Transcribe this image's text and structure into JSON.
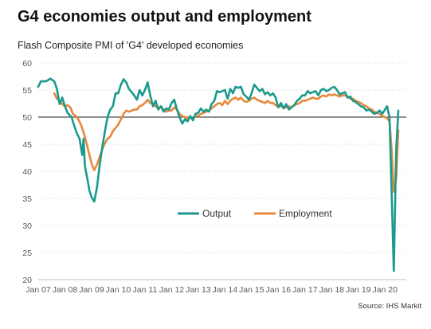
{
  "chart_data": {
    "type": "line",
    "title": "G4 economies output and employment",
    "subtitle": "Flash Composite PMI of 'G4' developed economies",
    "source": "Source: IHS Markit",
    "ylim": [
      20,
      60
    ],
    "y_ticks": [
      "20",
      "25",
      "30",
      "35",
      "40",
      "45",
      "50",
      "55",
      "60"
    ],
    "x_range": [
      2007.0,
      2020.5
    ],
    "x_ticks": [
      "Jan 07",
      "Jan 08",
      "Jan 09",
      "Jan 10",
      "Jan 11",
      "Jan 12",
      "Jan 13",
      "Jan 14",
      "Jan 15",
      "Jan 16",
      "Jan 17",
      "Jan 18",
      "Jan 19",
      "Jan 20"
    ],
    "reference_line": 50,
    "grid": "horizontal",
    "legend_position": "center-right",
    "series": [
      {
        "name": "Output",
        "color": "#1a9a8c",
        "points": [
          [
            2007.0,
            55.6
          ],
          [
            2007.1,
            56.6
          ],
          [
            2007.3,
            56.6
          ],
          [
            2007.45,
            57.1
          ],
          [
            2007.6,
            56.6
          ],
          [
            2007.7,
            55.2
          ],
          [
            2007.8,
            52.4
          ],
          [
            2007.9,
            53.6
          ],
          [
            2008.0,
            52.0
          ],
          [
            2008.1,
            50.8
          ],
          [
            2008.25,
            50.0
          ],
          [
            2008.35,
            48.4
          ],
          [
            2008.45,
            47.0
          ],
          [
            2008.55,
            46.0
          ],
          [
            2008.65,
            43.0
          ],
          [
            2008.7,
            46.0
          ],
          [
            2008.75,
            41.0
          ],
          [
            2008.85,
            38.4
          ],
          [
            2008.92,
            36.4
          ],
          [
            2009.0,
            35.2
          ],
          [
            2009.1,
            34.4
          ],
          [
            2009.2,
            37.0
          ],
          [
            2009.3,
            41.0
          ],
          [
            2009.4,
            44.4
          ],
          [
            2009.5,
            47.4
          ],
          [
            2009.6,
            50.0
          ],
          [
            2009.7,
            51.4
          ],
          [
            2009.8,
            52.0
          ],
          [
            2009.9,
            54.4
          ],
          [
            2010.0,
            54.4
          ],
          [
            2010.1,
            56.0
          ],
          [
            2010.2,
            57.0
          ],
          [
            2010.3,
            56.4
          ],
          [
            2010.4,
            55.2
          ],
          [
            2010.5,
            54.6
          ],
          [
            2010.6,
            54.0
          ],
          [
            2010.7,
            53.2
          ],
          [
            2010.8,
            55.0
          ],
          [
            2010.9,
            54.0
          ],
          [
            2011.0,
            55.0
          ],
          [
            2011.1,
            56.4
          ],
          [
            2011.2,
            54.0
          ],
          [
            2011.3,
            52.0
          ],
          [
            2011.4,
            53.0
          ],
          [
            2011.5,
            51.4
          ],
          [
            2011.6,
            52.0
          ],
          [
            2011.7,
            51.0
          ],
          [
            2011.8,
            51.6
          ],
          [
            2011.9,
            51.4
          ],
          [
            2012.0,
            52.6
          ],
          [
            2012.1,
            53.2
          ],
          [
            2012.2,
            51.4
          ],
          [
            2012.3,
            50.0
          ],
          [
            2012.4,
            48.8
          ],
          [
            2012.5,
            49.6
          ],
          [
            2012.6,
            49.2
          ],
          [
            2012.7,
            50.2
          ],
          [
            2012.8,
            49.4
          ],
          [
            2012.9,
            50.6
          ],
          [
            2013.0,
            50.8
          ],
          [
            2013.1,
            51.6
          ],
          [
            2013.2,
            51.0
          ],
          [
            2013.3,
            51.4
          ],
          [
            2013.4,
            51.0
          ],
          [
            2013.5,
            52.4
          ],
          [
            2013.6,
            53.0
          ],
          [
            2013.7,
            54.8
          ],
          [
            2013.8,
            54.6
          ],
          [
            2013.9,
            54.8
          ],
          [
            2014.0,
            55.0
          ],
          [
            2014.1,
            53.4
          ],
          [
            2014.2,
            55.2
          ],
          [
            2014.3,
            54.4
          ],
          [
            2014.4,
            55.6
          ],
          [
            2014.5,
            55.4
          ],
          [
            2014.6,
            55.6
          ],
          [
            2014.7,
            54.2
          ],
          [
            2014.8,
            53.8
          ],
          [
            2014.9,
            53.2
          ],
          [
            2015.0,
            54.4
          ],
          [
            2015.1,
            56.0
          ],
          [
            2015.2,
            55.4
          ],
          [
            2015.3,
            54.8
          ],
          [
            2015.4,
            55.2
          ],
          [
            2015.5,
            54.2
          ],
          [
            2015.6,
            54.6
          ],
          [
            2015.7,
            54.0
          ],
          [
            2015.8,
            54.4
          ],
          [
            2015.9,
            53.6
          ],
          [
            2016.0,
            51.8
          ],
          [
            2016.1,
            52.6
          ],
          [
            2016.2,
            51.6
          ],
          [
            2016.3,
            52.4
          ],
          [
            2016.4,
            51.4
          ],
          [
            2016.5,
            51.8
          ],
          [
            2016.6,
            52.2
          ],
          [
            2016.7,
            53.0
          ],
          [
            2016.8,
            53.4
          ],
          [
            2016.9,
            54.0
          ],
          [
            2017.0,
            54.0
          ],
          [
            2017.1,
            54.8
          ],
          [
            2017.2,
            54.4
          ],
          [
            2017.3,
            54.6
          ],
          [
            2017.4,
            54.8
          ],
          [
            2017.5,
            54.0
          ],
          [
            2017.6,
            55.0
          ],
          [
            2017.7,
            55.2
          ],
          [
            2017.8,
            54.8
          ],
          [
            2017.9,
            55.0
          ],
          [
            2018.0,
            55.4
          ],
          [
            2018.1,
            55.6
          ],
          [
            2018.2,
            55.0
          ],
          [
            2018.3,
            54.2
          ],
          [
            2018.4,
            54.4
          ],
          [
            2018.5,
            54.6
          ],
          [
            2018.6,
            53.6
          ],
          [
            2018.7,
            53.8
          ],
          [
            2018.8,
            53.0
          ],
          [
            2018.9,
            52.8
          ],
          [
            2019.0,
            52.4
          ],
          [
            2019.1,
            52.0
          ],
          [
            2019.2,
            51.8
          ],
          [
            2019.3,
            51.2
          ],
          [
            2019.4,
            51.4
          ],
          [
            2019.5,
            51.0
          ],
          [
            2019.6,
            50.6
          ],
          [
            2019.7,
            50.8
          ],
          [
            2019.8,
            51.2
          ],
          [
            2019.9,
            50.6
          ],
          [
            2020.0,
            51.4
          ],
          [
            2020.08,
            52.0
          ],
          [
            2020.17,
            50.0
          ],
          [
            2020.25,
            36.0
          ],
          [
            2020.33,
            21.6
          ],
          [
            2020.42,
            44.0
          ],
          [
            2020.5,
            51.2
          ]
        ]
      },
      {
        "name": "Employment",
        "color": "#e8883a",
        "points": [
          [
            2007.6,
            54.4
          ],
          [
            2007.7,
            53.4
          ],
          [
            2007.8,
            53.0
          ],
          [
            2007.9,
            52.4
          ],
          [
            2008.0,
            52.0
          ],
          [
            2008.1,
            52.2
          ],
          [
            2008.2,
            51.8
          ],
          [
            2008.3,
            50.6
          ],
          [
            2008.4,
            50.2
          ],
          [
            2008.5,
            49.6
          ],
          [
            2008.6,
            48.6
          ],
          [
            2008.7,
            47.2
          ],
          [
            2008.8,
            45.4
          ],
          [
            2008.9,
            43.4
          ],
          [
            2009.0,
            41.4
          ],
          [
            2009.1,
            40.2
          ],
          [
            2009.2,
            41.2
          ],
          [
            2009.3,
            42.6
          ],
          [
            2009.4,
            44.0
          ],
          [
            2009.5,
            45.2
          ],
          [
            2009.6,
            46.0
          ],
          [
            2009.7,
            46.4
          ],
          [
            2009.8,
            47.4
          ],
          [
            2009.9,
            48.0
          ],
          [
            2010.0,
            48.6
          ],
          [
            2010.1,
            49.6
          ],
          [
            2010.2,
            50.6
          ],
          [
            2010.3,
            51.2
          ],
          [
            2010.4,
            51.0
          ],
          [
            2010.5,
            51.2
          ],
          [
            2010.6,
            51.4
          ],
          [
            2010.7,
            51.4
          ],
          [
            2010.8,
            52.0
          ],
          [
            2010.9,
            52.2
          ],
          [
            2011.0,
            52.6
          ],
          [
            2011.1,
            53.2
          ],
          [
            2011.2,
            52.6
          ],
          [
            2011.3,
            52.4
          ],
          [
            2011.4,
            52.0
          ],
          [
            2011.5,
            51.6
          ],
          [
            2011.6,
            52.0
          ],
          [
            2011.7,
            51.4
          ],
          [
            2011.8,
            51.0
          ],
          [
            2011.9,
            51.2
          ],
          [
            2012.0,
            51.2
          ],
          [
            2012.1,
            51.8
          ],
          [
            2012.2,
            51.4
          ],
          [
            2012.3,
            50.6
          ],
          [
            2012.4,
            50.2
          ],
          [
            2012.5,
            50.0
          ],
          [
            2012.6,
            49.8
          ],
          [
            2012.7,
            50.0
          ],
          [
            2012.8,
            49.6
          ],
          [
            2012.9,
            50.2
          ],
          [
            2013.0,
            50.2
          ],
          [
            2013.1,
            50.6
          ],
          [
            2013.2,
            50.8
          ],
          [
            2013.3,
            51.0
          ],
          [
            2013.4,
            51.2
          ],
          [
            2013.5,
            51.6
          ],
          [
            2013.6,
            52.0
          ],
          [
            2013.7,
            52.4
          ],
          [
            2013.8,
            52.6
          ],
          [
            2013.9,
            52.2
          ],
          [
            2014.0,
            53.0
          ],
          [
            2014.1,
            52.4
          ],
          [
            2014.2,
            53.0
          ],
          [
            2014.3,
            53.4
          ],
          [
            2014.4,
            53.6
          ],
          [
            2014.5,
            53.2
          ],
          [
            2014.6,
            53.6
          ],
          [
            2014.7,
            53.0
          ],
          [
            2014.8,
            52.8
          ],
          [
            2014.9,
            53.0
          ],
          [
            2015.0,
            53.4
          ],
          [
            2015.1,
            53.6
          ],
          [
            2015.2,
            53.2
          ],
          [
            2015.3,
            53.0
          ],
          [
            2015.4,
            52.8
          ],
          [
            2015.5,
            52.6
          ],
          [
            2015.6,
            53.0
          ],
          [
            2015.7,
            52.6
          ],
          [
            2015.8,
            52.6
          ],
          [
            2015.9,
            52.2
          ],
          [
            2016.0,
            52.0
          ],
          [
            2016.1,
            52.0
          ],
          [
            2016.2,
            51.8
          ],
          [
            2016.3,
            51.8
          ],
          [
            2016.4,
            52.0
          ],
          [
            2016.5,
            51.8
          ],
          [
            2016.6,
            52.2
          ],
          [
            2016.7,
            52.4
          ],
          [
            2016.8,
            52.6
          ],
          [
            2016.9,
            53.0
          ],
          [
            2017.0,
            53.0
          ],
          [
            2017.1,
            53.2
          ],
          [
            2017.2,
            53.4
          ],
          [
            2017.3,
            53.6
          ],
          [
            2017.4,
            53.4
          ],
          [
            2017.5,
            53.4
          ],
          [
            2017.6,
            53.8
          ],
          [
            2017.7,
            54.0
          ],
          [
            2017.8,
            53.8
          ],
          [
            2017.9,
            54.2
          ],
          [
            2018.0,
            54.0
          ],
          [
            2018.1,
            54.2
          ],
          [
            2018.2,
            54.0
          ],
          [
            2018.3,
            53.8
          ],
          [
            2018.4,
            54.0
          ],
          [
            2018.5,
            54.0
          ],
          [
            2018.6,
            53.8
          ],
          [
            2018.7,
            53.4
          ],
          [
            2018.8,
            53.4
          ],
          [
            2018.9,
            53.0
          ],
          [
            2019.0,
            52.8
          ],
          [
            2019.1,
            52.6
          ],
          [
            2019.2,
            52.2
          ],
          [
            2019.3,
            52.0
          ],
          [
            2019.4,
            51.6
          ],
          [
            2019.5,
            51.4
          ],
          [
            2019.6,
            51.0
          ],
          [
            2019.7,
            50.8
          ],
          [
            2019.8,
            50.6
          ],
          [
            2019.9,
            50.2
          ],
          [
            2020.0,
            50.0
          ],
          [
            2020.08,
            49.8
          ],
          [
            2020.17,
            49.2
          ],
          [
            2020.25,
            44.0
          ],
          [
            2020.33,
            36.2
          ],
          [
            2020.42,
            38.6
          ],
          [
            2020.5,
            47.6
          ]
        ]
      }
    ]
  }
}
